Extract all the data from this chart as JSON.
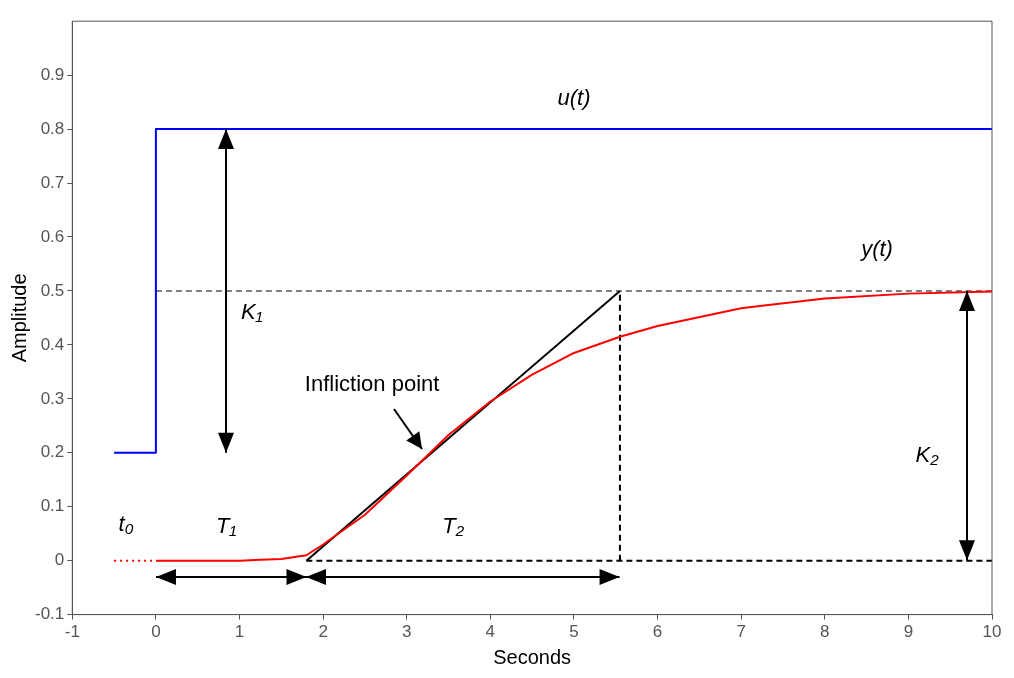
{
  "chart_data": {
    "type": "line",
    "xlabel": "Seconds",
    "ylabel": "Amplitude",
    "xlim": [
      -1,
      10
    ],
    "xticks": [
      -1,
      0,
      1,
      2,
      3,
      4,
      5,
      6,
      7,
      8,
      9,
      10
    ],
    "ylim": [
      -0.1,
      1.0
    ],
    "yticks": [
      -0.1,
      0,
      0.1,
      0.2,
      0.3,
      0.4,
      0.5,
      0.6,
      0.7,
      0.8,
      0.9
    ],
    "grid": false,
    "legend": false,
    "marker": "none",
    "series": [
      {
        "name": "u(t)",
        "color": "#0000ff",
        "x": [
          -0.5,
          0,
          0,
          10
        ],
        "values": [
          0.2,
          0.2,
          0.8,
          0.8
        ]
      },
      {
        "color": "#ff0000",
        "line_style": "dotted",
        "x": [
          -0.5,
          0
        ],
        "values": [
          0,
          0
        ]
      },
      {
        "name": "y(t)",
        "color": "#ff0000",
        "x": [
          0,
          1,
          1.5,
          1.8,
          2,
          2.5,
          3,
          3.5,
          4,
          4.5,
          5,
          5.55,
          6,
          7,
          8,
          9,
          10
        ],
        "values": [
          0,
          0,
          0.003,
          0.01,
          0.03,
          0.085,
          0.158,
          0.233,
          0.295,
          0.345,
          0.385,
          0.415,
          0.435,
          0.468,
          0.486,
          0.495,
          0.499
        ]
      },
      {
        "color": "#000000",
        "x": [
          1.8,
          5.55
        ],
        "values": [
          0,
          0.5
        ]
      },
      {
        "color": "#808080",
        "line_style": "dashed",
        "x": [
          0,
          10
        ],
        "values": [
          0.5,
          0.5
        ]
      },
      {
        "color": "#000000",
        "line_style": "dashed",
        "x": [
          5.55,
          5.55
        ],
        "values": [
          0,
          0.5
        ]
      },
      {
        "color": "#000000",
        "line_style": "dashed",
        "x": [
          1.8,
          10
        ],
        "values": [
          0,
          0
        ]
      }
    ],
    "annotations": [
      "K₁",
      "K₂",
      "t₀",
      "T₁",
      "T₂",
      "Infliction point"
    ]
  }
}
